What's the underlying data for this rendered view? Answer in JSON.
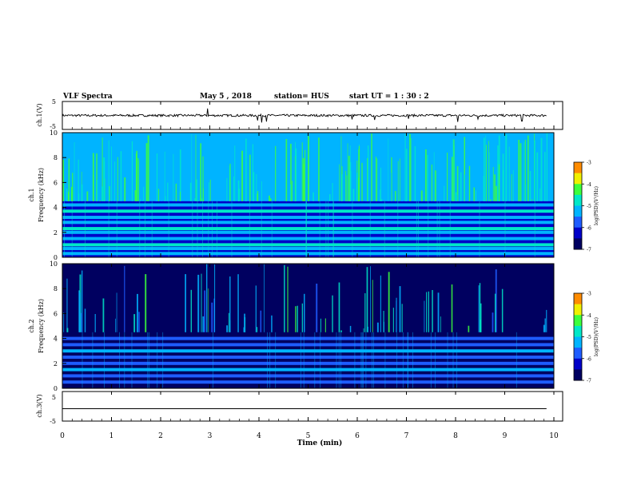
{
  "header": {
    "title": "VLF Spectra",
    "date": "May 5 , 2018",
    "station": "station= HUS",
    "start": "start  UT  =   1 : 30 : 2"
  },
  "chart_data": [
    {
      "id": "ch1-waveform",
      "type": "line",
      "ylabel": "ch.1(V)",
      "yticks": [
        "5",
        "-5"
      ],
      "ylim": [
        -5,
        5
      ],
      "xlim": [
        0,
        10
      ],
      "baseline": 0,
      "noise_amplitude": 0.4,
      "spikes": [
        {
          "x": 2.95,
          "y": 2.5
        },
        {
          "x": 3.98,
          "y": -1.8
        },
        {
          "x": 4.05,
          "y": -2.5
        },
        {
          "x": 4.15,
          "y": -2.2
        },
        {
          "x": 5.9,
          "y": -1.4
        },
        {
          "x": 6.35,
          "y": -1.6
        },
        {
          "x": 7.05,
          "y": -1.2
        },
        {
          "x": 8.05,
          "y": -2.3
        },
        {
          "x": 8.45,
          "y": -1.3
        },
        {
          "x": 9.35,
          "y": -2.0
        }
      ]
    },
    {
      "id": "ch1-spectrogram",
      "type": "heatmap",
      "ylabel": "Frequency (kHz)",
      "channel_label": "ch.1",
      "ylim": [
        0,
        10
      ],
      "yticks": [
        "0",
        "2",
        "4",
        "6",
        "8",
        "10"
      ],
      "xlim": [
        0,
        10
      ],
      "upper_band_kHz": [
        4.5,
        10
      ],
      "upper_level": 0.45,
      "lower_level": 0.22,
      "bands_kHz": [
        0.3,
        0.7,
        1.0,
        1.5,
        2.0,
        2.3,
        2.8,
        3.2,
        3.7,
        4.2
      ],
      "colorbar": {
        "label": "log(PSD)(V²/Hz)",
        "ticks": [
          "-3",
          "-4",
          "-5",
          "-6",
          "-7"
        ],
        "range": [
          -7,
          -3
        ]
      }
    },
    {
      "id": "ch2-spectrogram",
      "type": "heatmap",
      "ylabel": "Frequency (kHz)",
      "channel_label": "ch.2",
      "ylim": [
        0,
        10
      ],
      "yticks": [
        "0",
        "2",
        "4",
        "6",
        "8",
        "10"
      ],
      "xlim": [
        0,
        10
      ],
      "upper_band_kHz": [
        4.5,
        10
      ],
      "upper_level": 0.12,
      "lower_level": 0.1,
      "bands_kHz": [
        0.5,
        1.0,
        1.5,
        2.0,
        2.5,
        3.0,
        3.5,
        4.0
      ],
      "colorbar": {
        "label": "log(PSD)(V²/Hz)",
        "ticks": [
          "-3",
          "-4",
          "-5",
          "-6",
          "-7"
        ],
        "range": [
          -7,
          -3
        ]
      }
    },
    {
      "id": "ch3-waveform",
      "type": "line",
      "ylabel": "ch.3(V)",
      "yticks": [
        "5",
        "-5"
      ],
      "ylim": [
        -5,
        5
      ],
      "xlim": [
        0,
        10
      ],
      "baseline": -0.8,
      "noise_amplitude": 0,
      "spikes": []
    }
  ],
  "xaxis": {
    "label": "Time  (min)",
    "ticks": [
      "0",
      "1",
      "2",
      "3",
      "4",
      "5",
      "6",
      "7",
      "8",
      "9",
      "10"
    ]
  },
  "colors": {
    "colormap": [
      "#000060",
      "#0000c8",
      "#1e5cff",
      "#00b4ff",
      "#00e8c8",
      "#3cff3c",
      "#f0f000",
      "#ff8c00",
      "#ff1e00",
      "#ffffff"
    ]
  }
}
